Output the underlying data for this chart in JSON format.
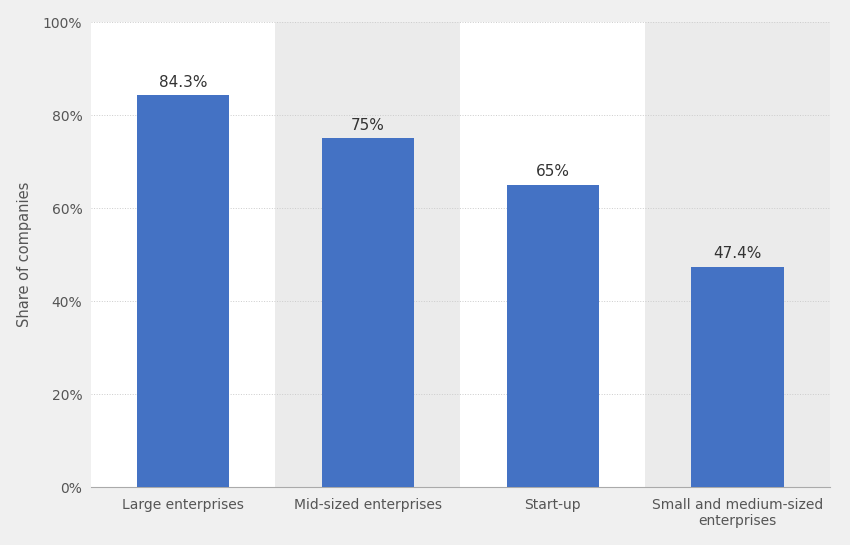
{
  "categories": [
    "Large enterprises",
    "Mid-sized enterprises",
    "Start-up",
    "Small and medium-sized\nenterprises"
  ],
  "values": [
    84.3,
    75.0,
    65.0,
    47.4
  ],
  "labels": [
    "84.3%",
    "75%",
    "65%",
    "47.4%"
  ],
  "bar_color": "#4472C4",
  "figure_bg_color": "#f0f0f0",
  "col_bg_white": "#ffffff",
  "col_bg_gray": "#ebebeb",
  "grid_color": "#cccccc",
  "ylabel": "Share of companies",
  "ylim": [
    0,
    100
  ],
  "yticks": [
    0,
    20,
    40,
    60,
    80,
    100
  ],
  "ytick_labels": [
    "0%",
    "20%",
    "40%",
    "60%",
    "80%",
    "100%"
  ],
  "label_fontsize": 11,
  "tick_fontsize": 10,
  "ylabel_fontsize": 10.5,
  "bar_width": 0.5
}
